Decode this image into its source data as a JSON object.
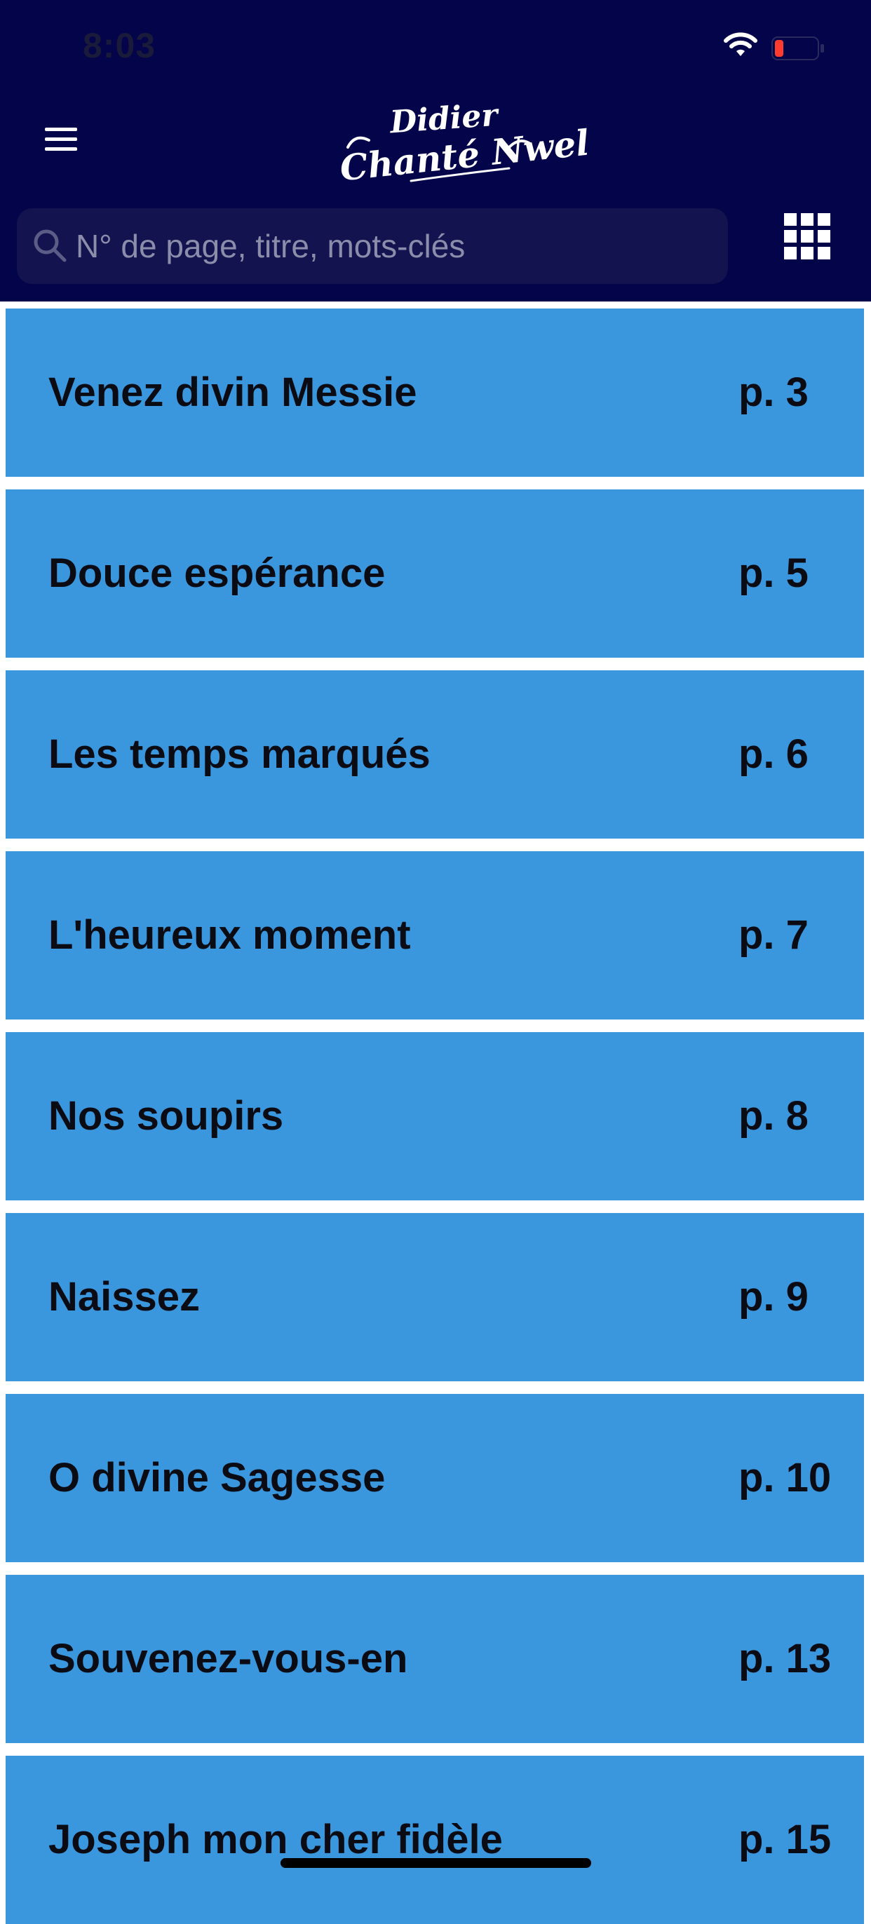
{
  "status_bar": {
    "time": "8:03"
  },
  "header": {
    "logo_line1": "Didier",
    "logo_line2": "Chanté Nwel",
    "menu_icon": "hamburger-menu-icon",
    "grid_icon": "grid-view-icon",
    "background_color": "#03044a"
  },
  "search": {
    "placeholder": "N° de page, titre, mots-clés",
    "value": "",
    "icon": "search-icon"
  },
  "songs": [
    {
      "title": "Venez divin Messie",
      "page": "p. 3"
    },
    {
      "title": "Douce espérance",
      "page": "p. 5"
    },
    {
      "title": "Les temps marqués",
      "page": "p. 6"
    },
    {
      "title": "L'heureux moment",
      "page": "p. 7"
    },
    {
      "title": "Nos soupirs",
      "page": "p. 8"
    },
    {
      "title": "Naissez",
      "page": "p. 9"
    },
    {
      "title": "O divine Sagesse",
      "page": "p. 10"
    },
    {
      "title": "Souvenez-vous-en",
      "page": "p. 13"
    },
    {
      "title": "Joseph mon cher fidèle",
      "page": "p. 15"
    }
  ],
  "colors": {
    "item_background": "#3a97de",
    "item_text": "#0b0b14"
  }
}
